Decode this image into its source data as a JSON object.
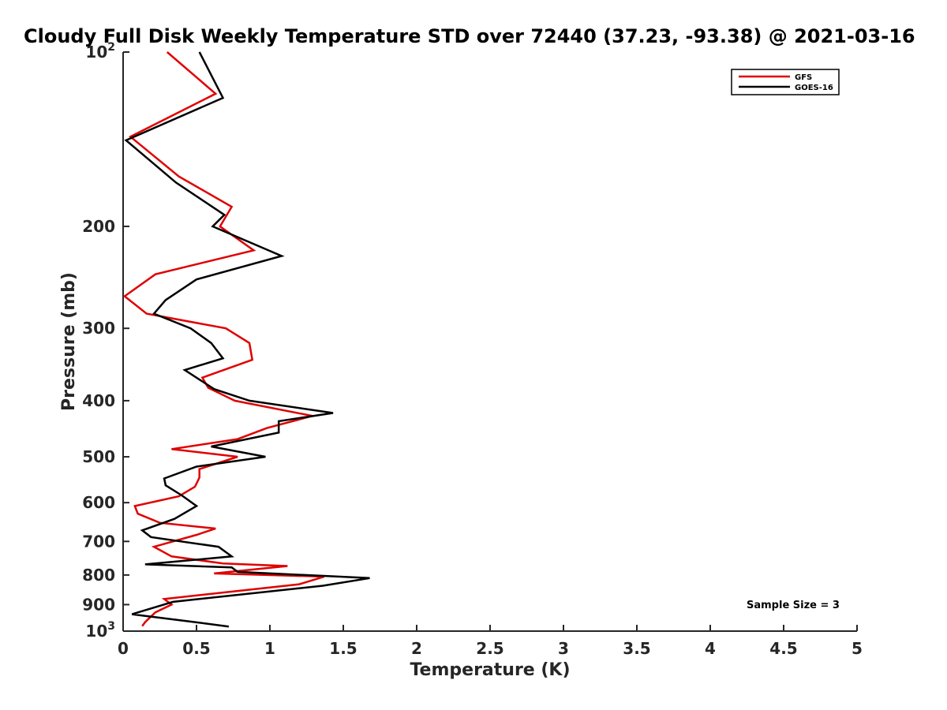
{
  "chart_data": {
    "type": "line",
    "title": "Cloudy Full Disk Weekly Temperature STD over 72440 (37.23, -93.38) @ 2021-03-16",
    "xlabel": "Temperature (K)",
    "ylabel": "Pressure (mb)",
    "xlim": [
      0,
      5
    ],
    "ylim": [
      1000,
      100
    ],
    "yscale": "log",
    "y_reversed": true,
    "grid": false,
    "legend_position": "top-right",
    "x_ticks": [
      {
        "value": 0,
        "label": "0"
      },
      {
        "value": 0.5,
        "label": "0.5"
      },
      {
        "value": 1,
        "label": "1"
      },
      {
        "value": 1.5,
        "label": "1.5"
      },
      {
        "value": 2,
        "label": "2"
      },
      {
        "value": 2.5,
        "label": "2.5"
      },
      {
        "value": 3,
        "label": "3"
      },
      {
        "value": 3.5,
        "label": "3.5"
      },
      {
        "value": 4,
        "label": "4"
      },
      {
        "value": 4.5,
        "label": "4.5"
      },
      {
        "value": 5,
        "label": "5"
      }
    ],
    "y_ticks": [
      {
        "value": 100,
        "base": "10",
        "exp": "2"
      },
      {
        "value": 200,
        "base": "200",
        "exp": ""
      },
      {
        "value": 300,
        "base": "300",
        "exp": ""
      },
      {
        "value": 400,
        "base": "400",
        "exp": ""
      },
      {
        "value": 500,
        "base": "500",
        "exp": ""
      },
      {
        "value": 600,
        "base": "600",
        "exp": ""
      },
      {
        "value": 700,
        "base": "700",
        "exp": ""
      },
      {
        "value": 800,
        "base": "800",
        "exp": ""
      },
      {
        "value": 900,
        "base": "900",
        "exp": ""
      },
      {
        "value": 1000,
        "base": "10",
        "exp": "3"
      }
    ],
    "annotation": "Sample Size = 3",
    "series": [
      {
        "name": "GFS",
        "color": "#e00000",
        "points": [
          [
            0.3,
            100
          ],
          [
            0.63,
            118
          ],
          [
            0.05,
            140
          ],
          [
            0.38,
            164
          ],
          [
            0.74,
            185
          ],
          [
            0.66,
            200
          ],
          [
            0.89,
            220
          ],
          [
            0.22,
            242
          ],
          [
            0.01,
            264
          ],
          [
            0.16,
            283
          ],
          [
            0.7,
            300
          ],
          [
            0.86,
            318
          ],
          [
            0.88,
            340
          ],
          [
            0.54,
            365
          ],
          [
            0.58,
            380
          ],
          [
            0.76,
            400
          ],
          [
            1.29,
            425
          ],
          [
            0.98,
            446
          ],
          [
            0.78,
            466
          ],
          [
            0.33,
            485
          ],
          [
            0.78,
            500
          ],
          [
            0.52,
            525
          ],
          [
            0.52,
            543
          ],
          [
            0.49,
            563
          ],
          [
            0.38,
            585
          ],
          [
            0.08,
            608
          ],
          [
            0.1,
            627
          ],
          [
            0.25,
            650
          ],
          [
            0.63,
            665
          ],
          [
            0.5,
            682
          ],
          [
            0.21,
            715
          ],
          [
            0.33,
            743
          ],
          [
            0.68,
            764
          ],
          [
            1.12,
            772
          ],
          [
            0.62,
            795
          ],
          [
            1.37,
            805
          ],
          [
            1.2,
            830
          ],
          [
            0.28,
            880
          ],
          [
            0.33,
            900
          ],
          [
            0.22,
            928
          ],
          [
            0.15,
            965
          ],
          [
            0.13,
            980
          ]
        ]
      },
      {
        "name": "GOES-16",
        "color": "#000000",
        "points": [
          [
            0.52,
            100
          ],
          [
            0.68,
            120
          ],
          [
            0.02,
            142
          ],
          [
            0.36,
            168
          ],
          [
            0.69,
            191
          ],
          [
            0.61,
            200
          ],
          [
            1.08,
            225
          ],
          [
            0.5,
            247
          ],
          [
            0.29,
            268
          ],
          [
            0.21,
            283
          ],
          [
            0.46,
            300
          ],
          [
            0.6,
            318
          ],
          [
            0.68,
            338
          ],
          [
            0.42,
            354
          ],
          [
            0.62,
            382
          ],
          [
            0.86,
            400
          ],
          [
            1.43,
            420
          ],
          [
            1.06,
            434
          ],
          [
            1.06,
            454
          ],
          [
            0.6,
            480
          ],
          [
            0.97,
            500
          ],
          [
            0.5,
            520
          ],
          [
            0.28,
            545
          ],
          [
            0.29,
            560
          ],
          [
            0.4,
            583
          ],
          [
            0.5,
            608
          ],
          [
            0.35,
            640
          ],
          [
            0.13,
            670
          ],
          [
            0.19,
            688
          ],
          [
            0.65,
            715
          ],
          [
            0.74,
            743
          ],
          [
            0.15,
            767
          ],
          [
            0.74,
            776
          ],
          [
            0.78,
            790
          ],
          [
            1.68,
            810
          ],
          [
            1.36,
            835
          ],
          [
            0.34,
            890
          ],
          [
            0.06,
            935
          ],
          [
            0.49,
            965
          ],
          [
            0.72,
            982
          ]
        ]
      }
    ]
  }
}
